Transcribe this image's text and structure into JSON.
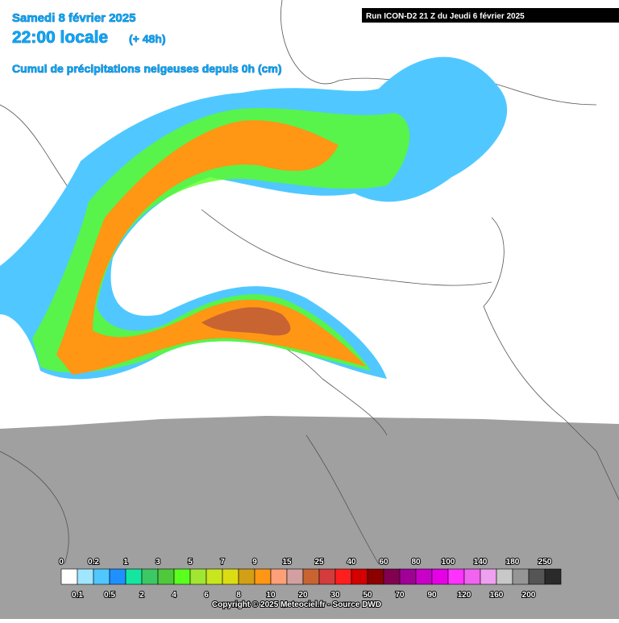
{
  "header": {
    "date": "Samedi 8 février 2025",
    "time": "22:00 locale",
    "lead": "(+ 48h)",
    "field": "Cumul de précipitations neigeuses depuis 0h (cm)",
    "run": "Run ICON-D2 21 Z du Jeudi 6 février 2025"
  },
  "legend": {
    "boundaries": [
      0,
      0.1,
      0.2,
      0.5,
      1,
      2,
      3,
      4,
      5,
      6,
      7,
      8,
      9,
      10,
      15,
      20,
      25,
      30,
      40,
      50,
      60,
      70,
      80,
      90,
      100,
      120,
      140,
      160,
      180,
      200,
      250
    ],
    "colors": [
      "#ffffff",
      "#a0e6ff",
      "#50c8ff",
      "#1e90ff",
      "#14e6a0",
      "#3cc864",
      "#50c83c",
      "#5aff1e",
      "#a0e632",
      "#c8e61e",
      "#dcdc14",
      "#d2a014",
      "#ff9614",
      "#ffa078",
      "#d2a0a0",
      "#c86432",
      "#d23c3c",
      "#ff1e1e",
      "#d20000",
      "#8c0000",
      "#820050",
      "#a00096",
      "#c800c8",
      "#e600e6",
      "#ff32ff",
      "#f064f0",
      "#f0a0f0",
      "#c8c8c8",
      "#969696",
      "#555555",
      "#2a2a2a"
    ]
  },
  "footer": {
    "copyright": "Copyright © 2025 Meteociel.fr - Source DWD"
  }
}
